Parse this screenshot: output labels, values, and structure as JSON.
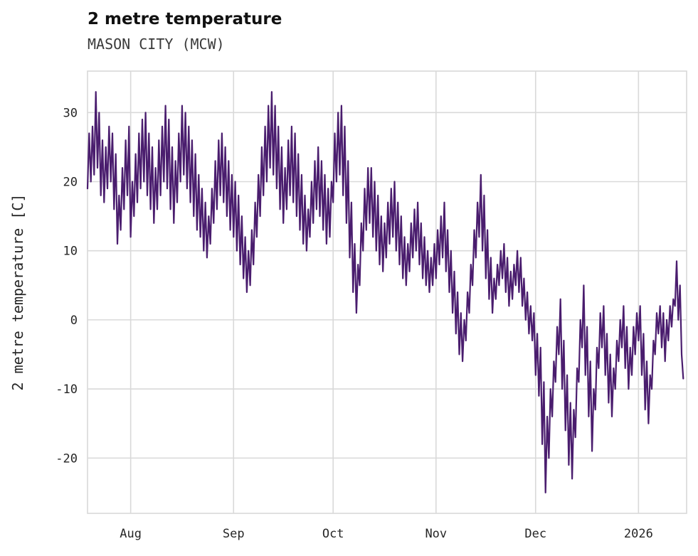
{
  "header": {
    "title": "2 metre temperature",
    "subtitle": "MASON CITY (MCW)"
  },
  "chart_data": {
    "type": "line",
    "title": "2 metre temperature",
    "subtitle": "MASON CITY (MCW)",
    "xlabel": "",
    "ylabel": "2 metre temperature [C]",
    "legend": "none",
    "grid": "on",
    "line_color": "#4a1d6e",
    "grid_color": "#d9d9d9",
    "ylim": [
      -28,
      36
    ],
    "yticks": [
      -20,
      -10,
      0,
      10,
      20,
      30
    ],
    "xlim_days": [
      0,
      180.5
    ],
    "points_per_day": 2,
    "xticks": [
      {
        "label": "Aug",
        "day": 13
      },
      {
        "label": "Sep",
        "day": 44
      },
      {
        "label": "Oct",
        "day": 74
      },
      {
        "label": "Nov",
        "day": 105
      },
      {
        "label": "Dec",
        "day": 135
      },
      {
        "label": "2026",
        "day": 166
      }
    ],
    "temps": [
      19,
      27,
      20,
      28,
      21,
      33,
      22,
      30,
      18,
      26,
      17,
      25,
      19,
      28,
      20,
      27,
      16,
      24,
      11,
      18,
      13,
      22,
      16,
      26,
      18,
      28,
      12,
      20,
      15,
      24,
      17,
      27,
      19,
      29,
      20,
      30,
      18,
      27,
      16,
      25,
      14,
      22,
      16,
      26,
      18,
      28,
      20,
      31,
      19,
      29,
      16,
      25,
      14,
      23,
      17,
      27,
      20,
      31,
      21,
      30,
      19,
      28,
      17,
      26,
      15,
      24,
      13,
      21,
      12,
      19,
      10,
      17,
      9,
      15,
      11,
      19,
      14,
      23,
      16,
      26,
      18,
      27,
      17,
      25,
      15,
      23,
      13,
      21,
      12,
      20,
      10,
      18,
      8,
      15,
      6,
      12,
      4,
      10,
      5,
      13,
      8,
      17,
      12,
      21,
      15,
      25,
      18,
      28,
      20,
      31,
      22,
      33,
      21,
      31,
      19,
      28,
      16,
      25,
      14,
      22,
      16,
      26,
      18,
      28,
      17,
      27,
      15,
      24,
      13,
      21,
      11,
      18,
      10,
      16,
      12,
      20,
      14,
      23,
      16,
      25,
      15,
      23,
      13,
      21,
      11,
      19,
      12,
      20,
      17,
      27,
      20,
      30,
      21,
      31,
      18,
      28,
      14,
      23,
      9,
      17,
      4,
      11,
      1,
      8,
      5,
      14,
      10,
      19,
      13,
      22,
      14,
      22,
      12,
      20,
      10,
      18,
      8,
      15,
      7,
      14,
      9,
      17,
      11,
      19,
      12,
      20,
      10,
      17,
      8,
      15,
      6,
      12,
      5,
      11,
      7,
      14,
      9,
      16,
      10,
      17,
      8,
      14,
      6,
      12,
      5,
      10,
      4,
      9,
      5,
      11,
      6,
      13,
      8,
      15,
      9,
      17,
      7,
      13,
      4,
      10,
      1,
      7,
      -2,
      4,
      -5,
      1,
      -6,
      0,
      -3,
      4,
      1,
      8,
      5,
      13,
      9,
      17,
      12,
      21,
      10,
      18,
      6,
      13,
      3,
      9,
      1,
      6,
      3,
      8,
      5,
      10,
      6,
      11,
      4,
      9,
      2,
      7,
      3,
      8,
      5,
      10,
      4,
      9,
      2,
      6,
      0,
      4,
      -2,
      2,
      -3,
      1,
      -8,
      -2,
      -11,
      -4,
      -18,
      -9,
      -25,
      -14,
      -20,
      -10,
      -14,
      -6,
      -9,
      -1,
      -5,
      3,
      -10,
      -3,
      -16,
      -8,
      -21,
      -12,
      -23,
      -13,
      -17,
      -7,
      -9,
      0,
      -4,
      5,
      -8,
      -1,
      -14,
      -6,
      -19,
      -10,
      -13,
      -4,
      -7,
      1,
      -4,
      2,
      -8,
      -2,
      -12,
      -5,
      -14,
      -7,
      -10,
      -3,
      -6,
      0,
      -4,
      2,
      -7,
      -1,
      -10,
      -4,
      -8,
      -1,
      -5,
      1,
      -3,
      2,
      -8,
      -2,
      -13,
      -6,
      -15,
      -8,
      -10,
      -3,
      -5,
      1,
      -2,
      2,
      -4,
      1,
      -6,
      0,
      -3,
      2,
      -1,
      3,
      2,
      8.5,
      0,
      5,
      -5,
      -8.5
    ]
  }
}
